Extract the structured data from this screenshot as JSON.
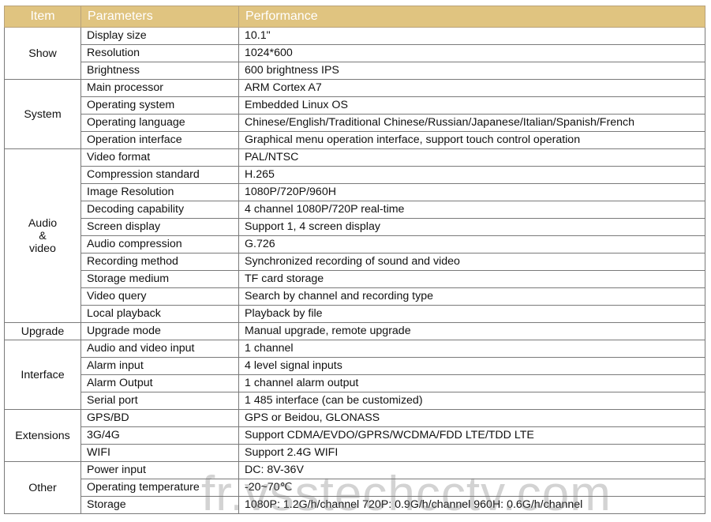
{
  "header": {
    "item": "Item",
    "parameters": "Parameters",
    "performance": "Performance"
  },
  "groups": [
    {
      "name": "Show",
      "rows": [
        {
          "param": "Display size",
          "value": "10.1\""
        },
        {
          "param": "Resolution",
          "value": "1024*600"
        },
        {
          "param": "Brightness",
          "value": "600 brightness IPS"
        }
      ]
    },
    {
      "name": "System",
      "rows": [
        {
          "param": "Main processor",
          "value": "ARM Cortex A7"
        },
        {
          "param": "Operating system",
          "value": "Embedded Linux OS"
        },
        {
          "param": "Operating language",
          "value": "Chinese/English/Traditional Chinese/Russian/Japanese/Italian/Spanish/French"
        },
        {
          "param": "Operation interface",
          "value": "Graphical menu operation interface, support touch control operation"
        }
      ]
    },
    {
      "name": "Audio\n&\nvideo",
      "rows": [
        {
          "param": "Video format",
          "value": "PAL/NTSC"
        },
        {
          "param": "Compression standard",
          "value": "H.265"
        },
        {
          "param": "Image Resolution",
          "value": "1080P/720P/960H"
        },
        {
          "param": "Decoding capability",
          "value": "4 channel 1080P/720P real-time"
        },
        {
          "param": "Screen display",
          "value": "Support 1, 4 screen display"
        },
        {
          "param": "Audio compression",
          "value": "G.726"
        },
        {
          "param": "Recording method",
          "value": "Synchronized recording of sound and video"
        },
        {
          "param": "Storage medium",
          "value": "TF card storage"
        },
        {
          "param": "Video query",
          "value": "Search by channel and recording type"
        },
        {
          "param": "Local playback",
          "value": "Playback by file"
        }
      ]
    },
    {
      "name": "Upgrade",
      "rows": [
        {
          "param": "Upgrade mode",
          "value": "Manual upgrade, remote upgrade"
        }
      ]
    },
    {
      "name": "Interface",
      "rows": [
        {
          "param": "Audio and video input",
          "value": "1 channel"
        },
        {
          "param": "Alarm input",
          "value": "4 level signal inputs"
        },
        {
          "param": "Alarm Output",
          "value": "1 channel alarm output"
        },
        {
          "param": "Serial port",
          "value": "1 485 interface (can be customized)"
        }
      ]
    },
    {
      "name": "Extensions",
      "rows": [
        {
          "param": "GPS/BD",
          "value": "GPS or Beidou, GLONASS"
        },
        {
          "param": "3G/4G",
          "value": "Support CDMA/EVDO/GPRS/WCDMA/FDD LTE/TDD LTE"
        },
        {
          "param": "WIFI",
          "value": "Support 2.4G WIFI"
        }
      ]
    },
    {
      "name": "Other",
      "rows": [
        {
          "param": "Power input",
          "value": "DC: 8V-36V"
        },
        {
          "param": "Operating temperature",
          "value": "-20~70℃"
        },
        {
          "param": "Storage",
          "value": "1080P: 1.2G/h/channel 720P: 0.9G/h/channel 960H: 0.6G/h/channel"
        }
      ]
    }
  ],
  "watermark": "fr.vsstechcctv.com"
}
